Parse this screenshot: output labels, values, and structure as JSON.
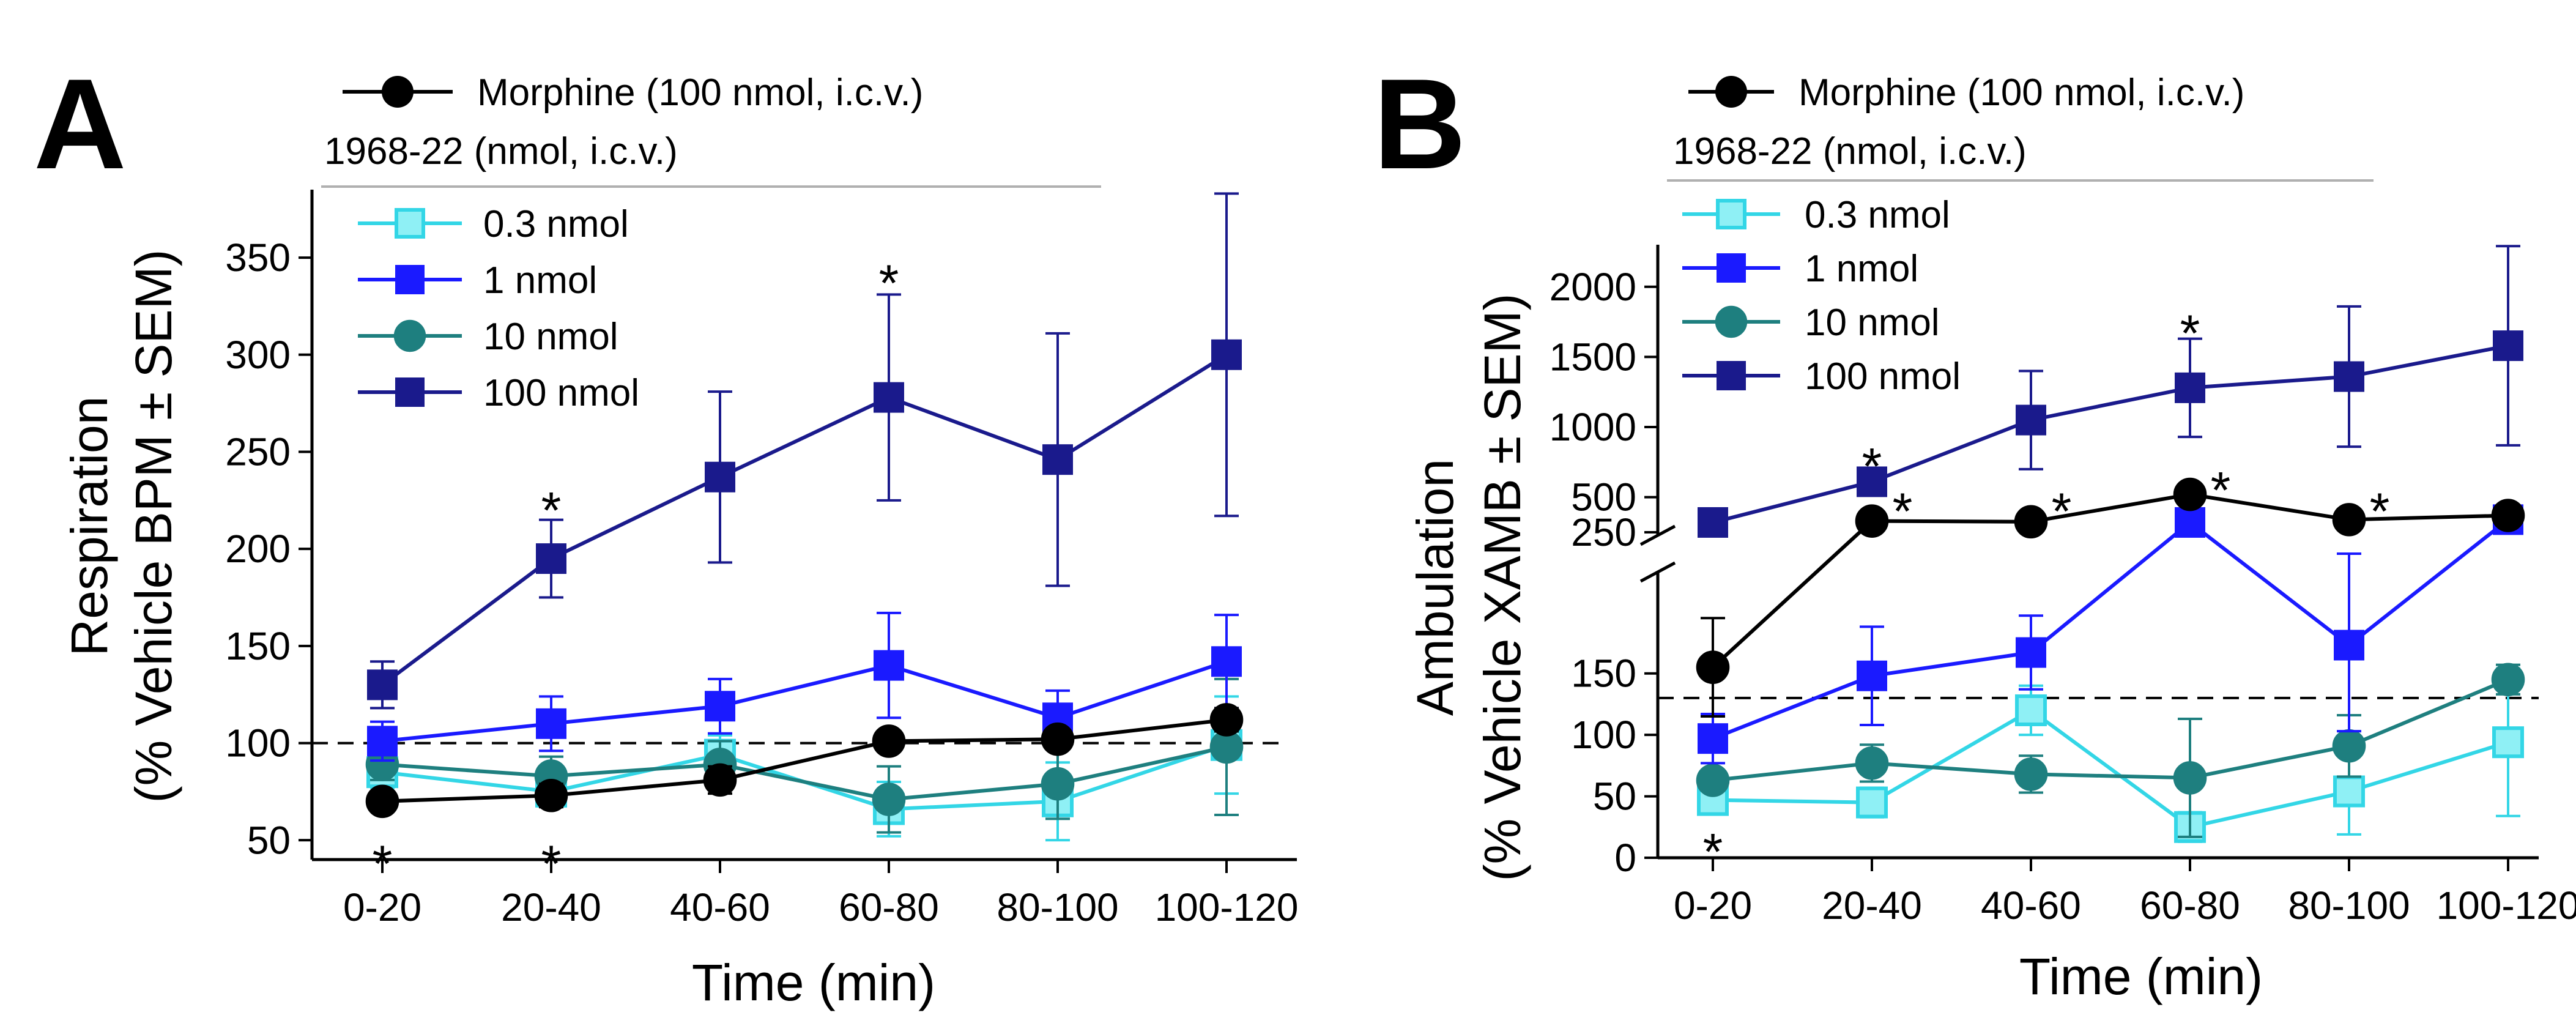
{
  "chart_data": [
    {
      "panel": "A",
      "type": "line",
      "xlabel": "Time (min)",
      "ylabel_line1": "Respiration",
      "ylabel_line2": "(% Vehicle BPM ± SEM)",
      "categories": [
        "0-20",
        "20-40",
        "40-60",
        "60-80",
        "80-100",
        "100-120"
      ],
      "ylim": [
        40,
        385
      ],
      "yticks": [
        50,
        100,
        150,
        200,
        250,
        300,
        350
      ],
      "reference_line": 100,
      "legend_header": "1968-22 (nmol, i.c.v.)",
      "series": [
        {
          "name": "Morphine (100 nmol, i.c.v.)",
          "color": "#000000",
          "marker": "circle",
          "values": [
            70,
            73,
            81,
            101,
            102,
            112
          ],
          "errors": [
            4,
            6,
            7,
            5,
            4,
            6
          ]
        },
        {
          "name": "0.3 nmol",
          "color": "#33d6e6",
          "marker": "square-open",
          "values": [
            85,
            75,
            94,
            66,
            70,
            99
          ],
          "errors": [
            8,
            8,
            10,
            14,
            20,
            25
          ]
        },
        {
          "name": "1 nmol",
          "color": "#1a1aff",
          "marker": "square",
          "values": [
            101,
            110,
            119,
            140,
            113,
            142
          ],
          "errors": [
            10,
            14,
            14,
            27,
            14,
            24
          ]
        },
        {
          "name": "10 nmol",
          "color": "#1e7f7f",
          "marker": "circle",
          "values": [
            89,
            83,
            89,
            71,
            79,
            98
          ],
          "errors": [
            8,
            10,
            12,
            17,
            18,
            35
          ]
        },
        {
          "name": "100 nmol",
          "color": "#1a1a8c",
          "marker": "square",
          "values": [
            130,
            195,
            237,
            278,
            246,
            300
          ],
          "errors": [
            12,
            20,
            44,
            53,
            65,
            83
          ]
        }
      ],
      "annotations": [
        {
          "text": "*",
          "category": "20-40",
          "y": 225
        },
        {
          "text": "*",
          "category": "60-80",
          "y": 342
        },
        {
          "text": "*",
          "category": "0-20",
          "y": 43
        },
        {
          "text": "*",
          "category": "20-40",
          "y": 43
        }
      ]
    },
    {
      "panel": "B",
      "type": "line",
      "xlabel": "Time (min)",
      "ylabel_line1": "Ambulation",
      "ylabel_line2": "(% Vehicle XAMB ± SEM)",
      "categories": [
        "0-20",
        "20-40",
        "40-60",
        "60-80",
        "80-100",
        "100-120"
      ],
      "axis_break": {
        "lower_ylim": [
          0,
          230
        ],
        "upper_ylim": [
          250,
          2300
        ]
      },
      "yticks_lower": [
        0,
        50,
        100,
        150
      ],
      "yticks_upper": [
        250,
        500,
        1000,
        1500,
        2000
      ],
      "reference_line": 130,
      "legend_header": "1968-22 (nmol, i.c.v.)",
      "series": [
        {
          "name": "Morphine (100 nmol, i.c.v.)",
          "color": "#000000",
          "marker": "circle",
          "values": [
            155,
            330,
            325,
            520,
            340,
            370
          ],
          "errors": [
            40,
            20,
            20,
            40,
            20,
            20
          ]
        },
        {
          "name": "0.3 nmol",
          "color": "#33d6e6",
          "marker": "square-open",
          "values": [
            47,
            45,
            120,
            25,
            54,
            94
          ],
          "errors": [
            10,
            12,
            20,
            12,
            35,
            60
          ]
        },
        {
          "name": "1 nmol",
          "color": "#1a1aff",
          "marker": "square",
          "values": [
            97,
            148,
            167,
            320,
            173,
            340
          ],
          "errors": [
            20,
            40,
            30,
            60,
            70,
            50
          ]
        },
        {
          "name": "10 nmol",
          "color": "#1e7f7f",
          "marker": "circle",
          "values": [
            63,
            77,
            68,
            65,
            91,
            145
          ],
          "errors": [
            8,
            15,
            15,
            48,
            25,
            12
          ]
        },
        {
          "name": "100 nmol",
          "color": "#1a1a8c",
          "marker": "square",
          "values": [
            320,
            610,
            1050,
            1280,
            1360,
            1580
          ],
          "errors": [
            0,
            0,
            350,
            350,
            500,
            710
          ]
        }
      ],
      "annotations": [
        {
          "text": "*",
          "category": "20-40",
          "y": 790
        },
        {
          "text": "*",
          "category": "60-80",
          "y": 1740
        },
        {
          "text": "*",
          "category": "20-40",
          "y": 470,
          "side": "right"
        },
        {
          "text": "*",
          "category": "40-60",
          "y": 470,
          "side": "right"
        },
        {
          "text": "*",
          "category": "60-80",
          "y": 620,
          "side": "right"
        },
        {
          "text": "*",
          "category": "80-100",
          "y": 470,
          "side": "right"
        },
        {
          "text": "*",
          "category": "0-20",
          "y": 13
        }
      ]
    }
  ]
}
